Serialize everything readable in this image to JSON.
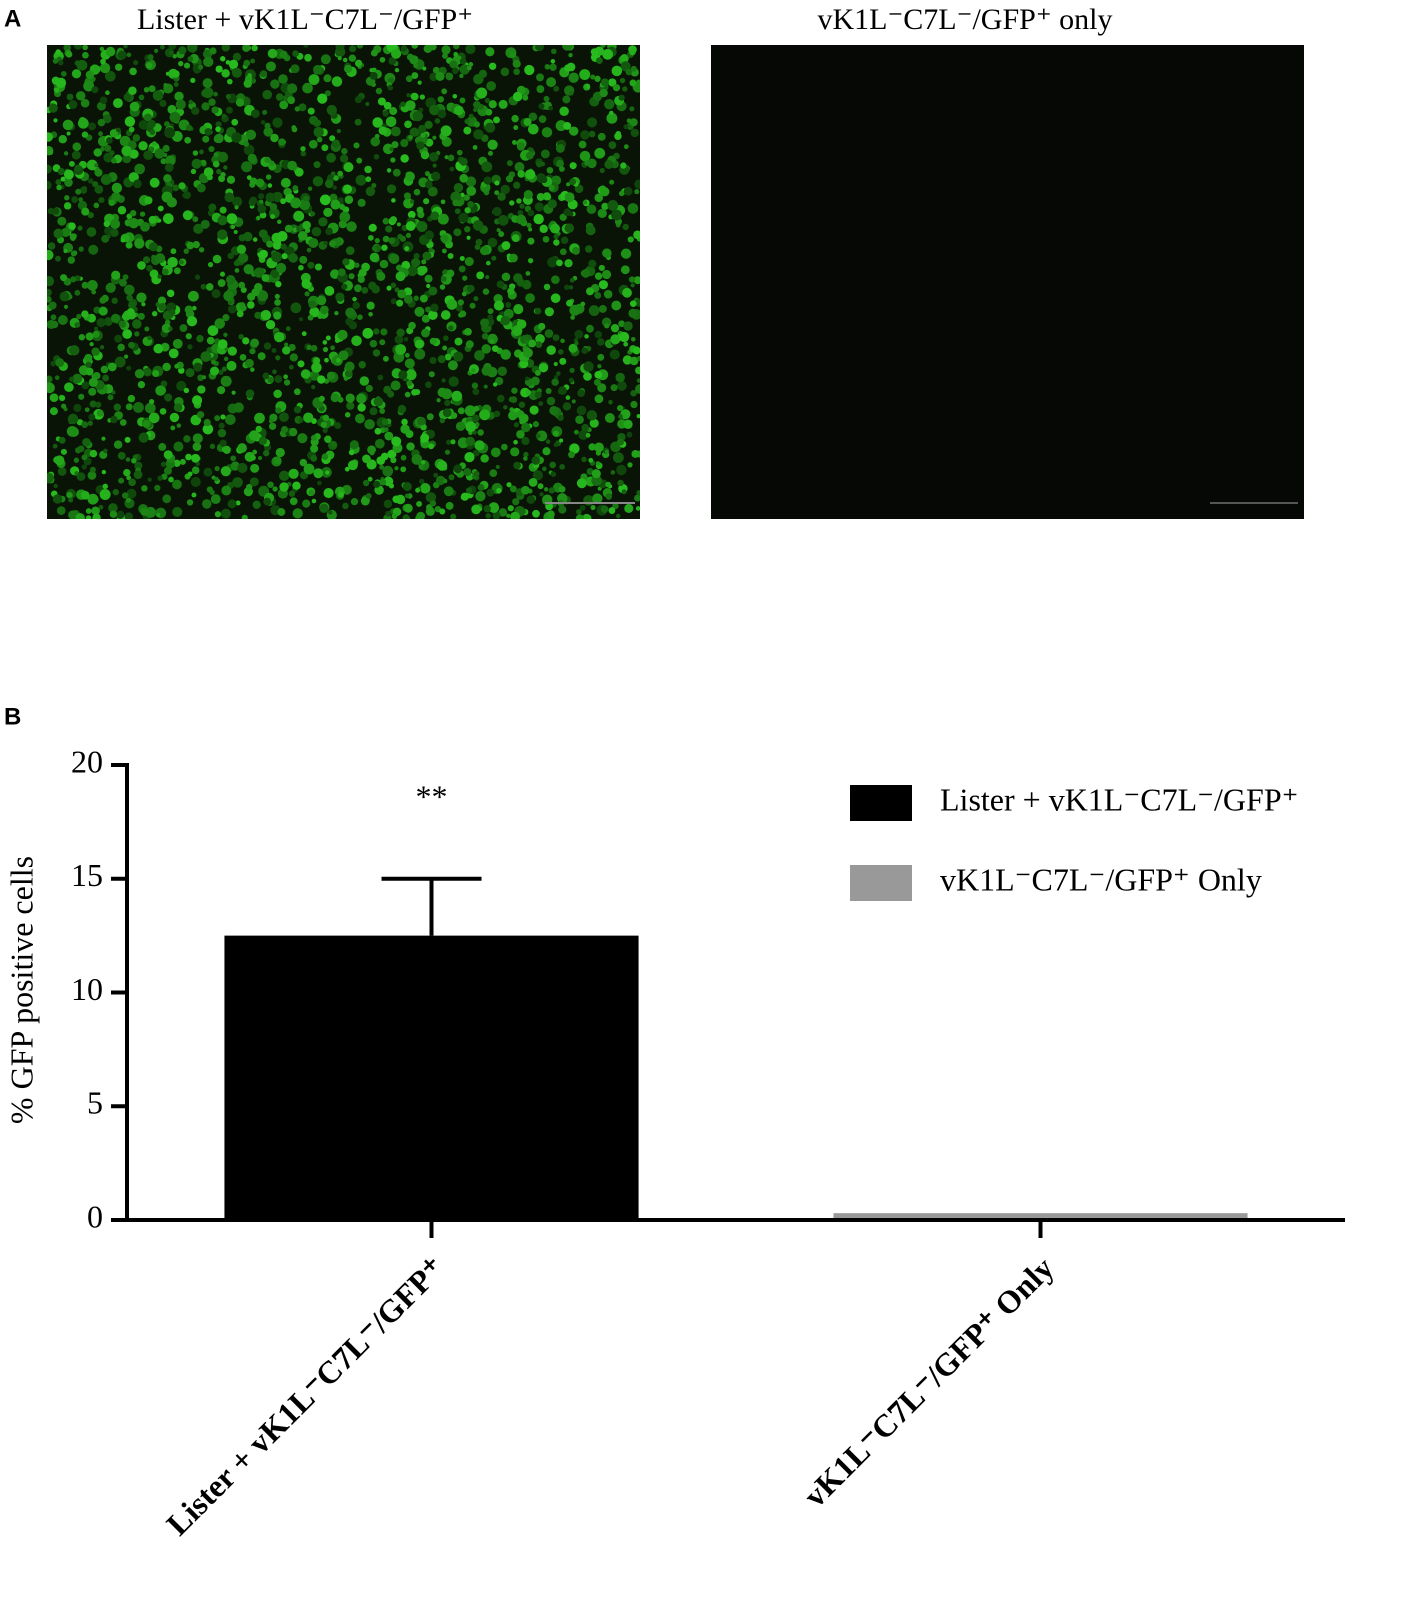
{
  "panel_a": {
    "label": "A",
    "images": [
      {
        "caption": "Lister + vK1L⁻C7L⁻/GFP⁺"
      },
      {
        "caption": "vK1L⁻C7L⁻/GFP⁺ only"
      }
    ]
  },
  "chart_data": {
    "type": "bar",
    "panel_label": "B",
    "ylabel": "% GFP positive cells",
    "categories": [
      "Lister + vK1L⁻C7L⁻/GFP⁺",
      "vK1L⁻C7L⁻/GFP⁺ Only"
    ],
    "series": [
      {
        "name": "Lister + vK1L⁻C7L⁻/GFP⁺",
        "color": "#000000",
        "values": [
          12.5,
          null
        ],
        "errors": [
          2.5,
          null
        ]
      },
      {
        "name": "vK1L⁻C7L⁻/GFP⁺ Only",
        "color": "#999999",
        "values": [
          null,
          0.3
        ],
        "errors": [
          null,
          null
        ]
      }
    ],
    "annotations": [
      {
        "text": "**",
        "category": 0
      }
    ],
    "ylim": [
      0,
      20
    ],
    "yticks": [
      0,
      5,
      10,
      15,
      20
    ]
  }
}
